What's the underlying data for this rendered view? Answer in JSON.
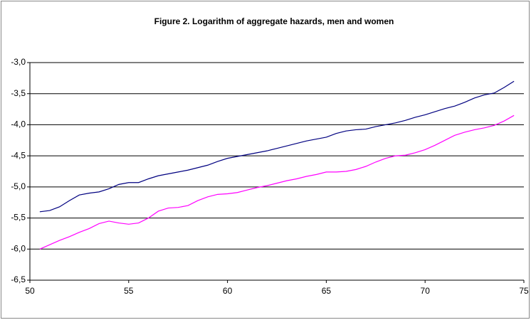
{
  "chart_data": {
    "type": "line",
    "title": "Figure 2. Logarithm of aggregate hazards, men and women",
    "x": [
      50.5,
      51,
      51.5,
      52,
      52.5,
      53,
      53.5,
      54,
      54.5,
      55,
      55.5,
      56,
      56.5,
      57,
      57.5,
      58,
      58.5,
      59,
      59.5,
      60,
      60.5,
      61,
      61.5,
      62,
      62.5,
      63,
      63.5,
      64,
      64.5,
      65,
      65.5,
      66,
      66.5,
      67,
      67.5,
      68,
      68.5,
      69,
      69.5,
      70,
      70.5,
      71,
      71.5,
      72,
      72.5,
      73,
      73.5,
      74,
      74.5
    ],
    "series": [
      {
        "color": "#000080",
        "values": [
          -5.4,
          -5.38,
          -5.32,
          -5.22,
          -5.13,
          -5.1,
          -5.08,
          -5.03,
          -4.96,
          -4.93,
          -4.93,
          -4.87,
          -4.82,
          -4.79,
          -4.76,
          -4.73,
          -4.69,
          -4.65,
          -4.59,
          -4.54,
          -4.51,
          -4.48,
          -4.45,
          -4.42,
          -4.38,
          -4.34,
          -4.3,
          -4.26,
          -4.23,
          -4.2,
          -4.14,
          -4.1,
          -4.08,
          -4.07,
          -4.03,
          -4.0,
          -3.97,
          -3.93,
          -3.88,
          -3.84,
          -3.79,
          -3.74,
          -3.7,
          -3.64,
          -3.57,
          -3.52,
          -3.49,
          -3.4,
          -3.3
        ]
      },
      {
        "color": "#ff00ff",
        "values": [
          -6.0,
          -5.93,
          -5.86,
          -5.8,
          -5.73,
          -5.67,
          -5.59,
          -5.55,
          -5.58,
          -5.6,
          -5.58,
          -5.5,
          -5.39,
          -5.34,
          -5.33,
          -5.3,
          -5.22,
          -5.16,
          -5.12,
          -5.11,
          -5.09,
          -5.05,
          -5.01,
          -4.98,
          -4.94,
          -4.9,
          -4.87,
          -4.83,
          -4.8,
          -4.76,
          -4.76,
          -4.75,
          -4.72,
          -4.67,
          -4.6,
          -4.54,
          -4.5,
          -4.49,
          -4.45,
          -4.4,
          -4.33,
          -4.25,
          -4.17,
          -4.12,
          -4.08,
          -4.05,
          -4.01,
          -3.94,
          -3.85
        ]
      }
    ],
    "xlim": [
      50,
      75
    ],
    "xticks": [
      50,
      55,
      60,
      65,
      70,
      75
    ],
    "ylim": [
      -6.5,
      -3.0
    ],
    "yticks": [
      {
        "value": -6.5,
        "label": "-6,5"
      },
      {
        "value": -6.0,
        "label": "-6,0"
      },
      {
        "value": -5.5,
        "label": "-5,5"
      },
      {
        "value": -5.0,
        "label": "-5,0"
      },
      {
        "value": -4.5,
        "label": "-4,5"
      },
      {
        "value": -4.0,
        "label": "-4,0"
      },
      {
        "value": -3.5,
        "label": "-3,5"
      },
      {
        "value": -3.0,
        "label": "-3,0"
      }
    ],
    "grid": true
  }
}
